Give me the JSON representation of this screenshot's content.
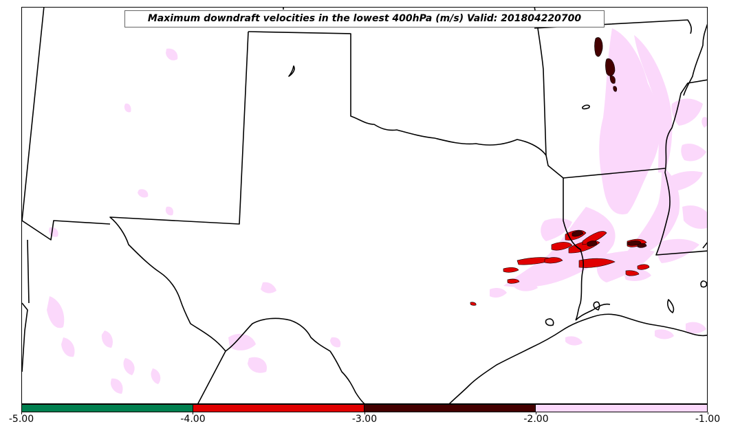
{
  "title": "Maximum downdraft velocities in the lowest 400hPa (m/s) Valid: 201804220700",
  "colorbar": {
    "ticks": [
      "-5.00",
      "-4.00",
      "-3.00",
      "-2.00",
      "-1.00"
    ],
    "bins": [
      {
        "min": -5.0,
        "max": -4.0,
        "color": "#007f4f"
      },
      {
        "min": -4.0,
        "max": -3.0,
        "color": "#e00000"
      },
      {
        "min": -3.0,
        "max": -2.0,
        "color": "#440000"
      },
      {
        "min": -2.0,
        "max": -1.0,
        "color": "#fbd8fb"
      }
    ]
  },
  "colors": {
    "border": "#000000",
    "light": "#fbd8fb",
    "red": "#e00000",
    "dark": "#440000"
  }
}
